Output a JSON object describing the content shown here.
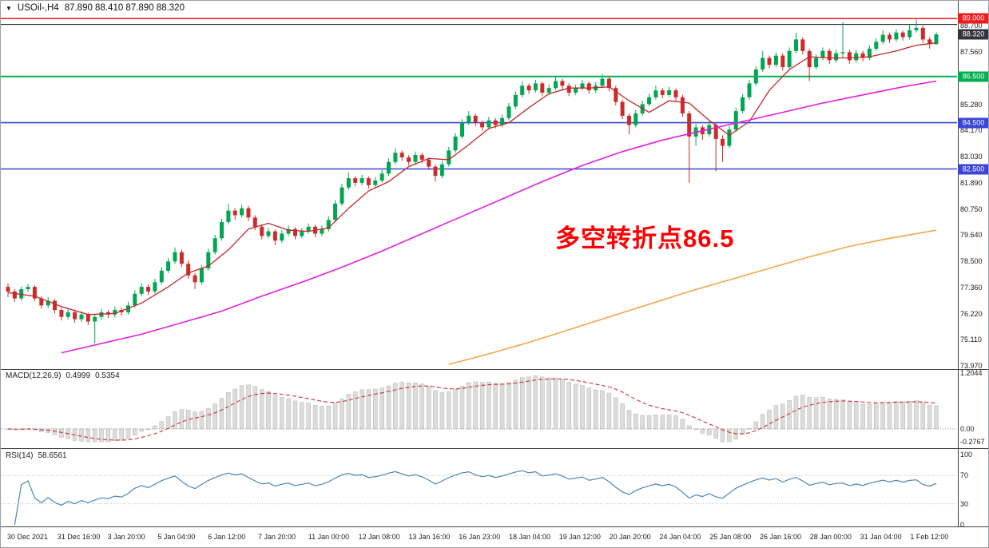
{
  "window": {
    "dropdown_icon": "▼",
    "symbol_period": "USOil-,H4",
    "ohlc": "87.890 88.410 87.890 88.320"
  },
  "annotation": {
    "text": "多空转折点86.5",
    "color": "#ff0000"
  },
  "current_price": {
    "value": 88.32,
    "label": "88.320",
    "label_bg": "#34343f"
  },
  "levels": [
    {
      "price": 89.0,
      "color": "#ee1c1c",
      "width": 1.5,
      "label": "89.000",
      "label_bg": "#ee1c1c"
    },
    {
      "price": 88.75,
      "color": "#141414",
      "width": 1
    },
    {
      "price": 86.5,
      "color": "#00b050",
      "width": 2,
      "label": "86.500",
      "label_bg": "#00b050"
    },
    {
      "price": 84.5,
      "color": "#3a45d6",
      "width": 1.6,
      "label": "84.500",
      "label_bg": "#3a45d6"
    },
    {
      "price": 82.5,
      "color": "#3a45d6",
      "width": 1.6,
      "label": "82.500",
      "label_bg": "#3a45d6"
    }
  ],
  "price_axis_labels": [
    {
      "text": "88.700",
      "price": 88.7
    },
    {
      "text": "87.560",
      "price": 87.56
    },
    {
      "text": "85.280",
      "price": 85.28
    },
    {
      "text": "84.170",
      "price": 84.17
    },
    {
      "text": "83.030",
      "price": 83.03
    },
    {
      "text": "81.890",
      "price": 81.89
    },
    {
      "text": "80.750",
      "price": 80.75
    },
    {
      "text": "79.640",
      "price": 79.64
    },
    {
      "text": "78.500",
      "price": 78.5
    },
    {
      "text": "77.360",
      "price": 77.36
    },
    {
      "text": "76.220",
      "price": 76.22
    },
    {
      "text": "75.110",
      "price": 75.11
    },
    {
      "text": "73.970",
      "price": 73.97
    }
  ],
  "date_axis": [
    "30 Dec 2021",
    "31 Dec 16:00",
    "3 Jan 20:00",
    "5 Jan 04:00",
    "6 Jan 12:00",
    "7 Jan 20:00",
    "11 Jan 00:00",
    "12 Jan 08:00",
    "13 Jan 16:00",
    "16 Jan 23:00",
    "18 Jan 04:00",
    "19 Jan 12:00",
    "20 Jan 20:00",
    "24 Jan 04:00",
    "25 Jan 08:00",
    "26 Jan 16:00",
    "28 Jan 00:00",
    "31 Jan 04:00",
    "1 Feb 12:00"
  ],
  "macd": {
    "name": "MACD(12,26,9)",
    "value_main": "0.4999",
    "value_signal": "0.5354",
    "params": {
      "fast": 12,
      "slow": 26,
      "signal": 9
    },
    "axis_labels": [
      {
        "text": "1.2044",
        "value": 1.2044
      },
      {
        "text": "0.00",
        "value": 0
      },
      {
        "text": "-0.2767",
        "value": -0.2767
      }
    ]
  },
  "rsi": {
    "name": "RSI(14)",
    "value": "58.6561",
    "period": 14,
    "level_lines": [
      70,
      30
    ],
    "axis_labels": [
      {
        "text": "100",
        "value": 100
      },
      {
        "text": "70",
        "value": 70
      },
      {
        "text": "30",
        "value": 30
      },
      {
        "text": "0",
        "value": 0
      }
    ]
  },
  "chart_data": {
    "type": "candlestick",
    "title": "USOil-,H4",
    "symbol": "USOil-",
    "timeframe": "H4",
    "ylim": [
      73.97,
      89.3
    ],
    "x_range": [
      "30 Dec 2021",
      "1 Feb 12:00"
    ],
    "indicators": [
      "MACD(12,26,9)",
      "RSI(14)"
    ],
    "colors": {
      "up": "#00a651",
      "down": "#cc2b2b"
    },
    "candles": [
      [
        77.4,
        77.55,
        76.95,
        77.2
      ],
      [
        77.2,
        77.3,
        76.75,
        76.9
      ],
      [
        76.9,
        77.42,
        76.8,
        77.3
      ],
      [
        77.3,
        77.52,
        77.18,
        77.4
      ],
      [
        77.4,
        77.48,
        76.78,
        76.9
      ],
      [
        76.9,
        77.0,
        76.45,
        76.6
      ],
      [
        76.6,
        76.95,
        76.48,
        76.8
      ],
      [
        76.8,
        76.88,
        76.25,
        76.4
      ],
      [
        76.4,
        76.5,
        75.95,
        76.1
      ],
      [
        76.1,
        76.45,
        75.98,
        76.3
      ],
      [
        76.3,
        76.38,
        75.85,
        76.0
      ],
      [
        76.0,
        76.35,
        75.88,
        76.2
      ],
      [
        76.2,
        76.28,
        75.75,
        75.9
      ],
      [
        75.9,
        76.22,
        74.95,
        76.1
      ],
      [
        76.1,
        76.45,
        75.98,
        76.3
      ],
      [
        76.3,
        76.4,
        76.05,
        76.2
      ],
      [
        76.2,
        76.55,
        76.08,
        76.4
      ],
      [
        76.4,
        76.5,
        76.15,
        76.3
      ],
      [
        76.3,
        76.75,
        76.2,
        76.6
      ],
      [
        76.6,
        77.25,
        76.5,
        77.1
      ],
      [
        77.1,
        77.55,
        77.0,
        77.4
      ],
      [
        77.4,
        77.5,
        77.05,
        77.2
      ],
      [
        77.2,
        77.75,
        77.1,
        77.6
      ],
      [
        77.6,
        78.25,
        77.5,
        78.1
      ],
      [
        78.1,
        78.65,
        78.0,
        78.5
      ],
      [
        78.5,
        79.1,
        78.4,
        78.9
      ],
      [
        78.9,
        79.0,
        78.25,
        78.4
      ],
      [
        78.4,
        78.55,
        77.75,
        77.9
      ],
      [
        77.9,
        78.0,
        77.3,
        77.6
      ],
      [
        77.6,
        78.35,
        77.5,
        78.2
      ],
      [
        78.2,
        79.05,
        78.1,
        78.9
      ],
      [
        78.9,
        79.65,
        78.8,
        79.5
      ],
      [
        79.5,
        80.35,
        79.4,
        80.2
      ],
      [
        80.2,
        81.0,
        80.1,
        80.7
      ],
      [
        80.7,
        80.8,
        80.3,
        80.5
      ],
      [
        80.5,
        80.95,
        80.4,
        80.8
      ],
      [
        80.8,
        80.9,
        80.25,
        80.4
      ],
      [
        80.4,
        80.5,
        79.85,
        80.0
      ],
      [
        80.0,
        80.1,
        79.45,
        79.6
      ],
      [
        79.6,
        79.95,
        79.5,
        79.8
      ],
      [
        79.8,
        79.88,
        79.2,
        79.4
      ],
      [
        79.4,
        79.85,
        79.3,
        79.7
      ],
      [
        79.7,
        80.05,
        79.6,
        79.9
      ],
      [
        79.9,
        79.98,
        79.45,
        79.6
      ],
      [
        79.6,
        79.95,
        79.5,
        79.8
      ],
      [
        79.8,
        80.15,
        79.7,
        80.0
      ],
      [
        80.0,
        80.08,
        79.55,
        79.7
      ],
      [
        79.7,
        80.05,
        79.6,
        79.9
      ],
      [
        79.9,
        80.45,
        79.8,
        80.3
      ],
      [
        80.3,
        81.15,
        80.2,
        81.0
      ],
      [
        81.0,
        81.85,
        80.9,
        81.7
      ],
      [
        81.7,
        82.35,
        81.6,
        82.1
      ],
      [
        82.1,
        82.2,
        81.75,
        81.9
      ],
      [
        81.9,
        82.25,
        81.8,
        82.1
      ],
      [
        82.1,
        82.18,
        81.65,
        81.8
      ],
      [
        81.8,
        82.15,
        81.7,
        82.0
      ],
      [
        82.0,
        82.45,
        81.9,
        82.3
      ],
      [
        82.3,
        82.95,
        82.2,
        82.8
      ],
      [
        82.8,
        83.4,
        82.7,
        83.2
      ],
      [
        83.2,
        83.3,
        82.85,
        83.0
      ],
      [
        83.0,
        83.1,
        82.65,
        82.8
      ],
      [
        82.8,
        83.25,
        82.7,
        83.1
      ],
      [
        83.1,
        83.2,
        82.75,
        82.9
      ],
      [
        82.9,
        83.0,
        82.45,
        82.6
      ],
      [
        82.6,
        82.7,
        81.95,
        82.2
      ],
      [
        82.2,
        82.85,
        82.1,
        82.7
      ],
      [
        82.7,
        83.45,
        82.6,
        83.3
      ],
      [
        83.3,
        84.05,
        83.2,
        83.9
      ],
      [
        83.9,
        84.65,
        83.8,
        84.5
      ],
      [
        84.5,
        85.0,
        84.4,
        84.8
      ],
      [
        84.8,
        84.9,
        84.35,
        84.5
      ],
      [
        84.5,
        84.6,
        84.15,
        84.3
      ],
      [
        84.3,
        84.75,
        84.2,
        84.6
      ],
      [
        84.6,
        84.7,
        84.25,
        84.4
      ],
      [
        84.4,
        84.85,
        84.3,
        84.7
      ],
      [
        84.7,
        85.35,
        84.6,
        85.2
      ],
      [
        85.2,
        85.85,
        85.1,
        85.7
      ],
      [
        85.7,
        86.3,
        85.6,
        86.1
      ],
      [
        86.1,
        86.2,
        85.75,
        85.9
      ],
      [
        85.9,
        86.35,
        85.8,
        86.2
      ],
      [
        86.2,
        86.28,
        85.65,
        85.8
      ],
      [
        85.8,
        86.15,
        85.7,
        86.0
      ],
      [
        86.0,
        86.5,
        85.9,
        86.3
      ],
      [
        86.3,
        86.4,
        85.95,
        86.1
      ],
      [
        86.1,
        86.2,
        85.65,
        85.8
      ],
      [
        85.8,
        86.15,
        85.7,
        86.0
      ],
      [
        86.0,
        86.35,
        85.9,
        86.2
      ],
      [
        86.2,
        86.28,
        85.75,
        85.9
      ],
      [
        85.9,
        86.25,
        85.8,
        86.1
      ],
      [
        86.1,
        86.6,
        86.0,
        86.4
      ],
      [
        86.4,
        86.48,
        85.85,
        86.0
      ],
      [
        86.0,
        86.1,
        85.25,
        85.4
      ],
      [
        85.4,
        85.5,
        84.65,
        84.8
      ],
      [
        84.8,
        84.9,
        84.0,
        84.4
      ],
      [
        84.4,
        85.05,
        84.3,
        84.9
      ],
      [
        84.9,
        85.45,
        84.8,
        85.3
      ],
      [
        85.3,
        85.75,
        85.2,
        85.6
      ],
      [
        85.6,
        86.1,
        85.5,
        85.9
      ],
      [
        85.9,
        86.0,
        85.55,
        85.7
      ],
      [
        85.7,
        86.05,
        85.6,
        85.9
      ],
      [
        85.9,
        85.98,
        85.4,
        85.6
      ],
      [
        85.6,
        85.7,
        84.75,
        84.9
      ],
      [
        84.9,
        85.0,
        81.9,
        83.9
      ],
      [
        83.9,
        84.45,
        83.5,
        84.3
      ],
      [
        84.3,
        84.4,
        83.75,
        84.0
      ],
      [
        84.0,
        84.55,
        83.9,
        84.4
      ],
      [
        84.4,
        84.5,
        82.4,
        83.8
      ],
      [
        83.8,
        83.95,
        82.8,
        83.5
      ],
      [
        83.5,
        84.35,
        83.4,
        84.2
      ],
      [
        84.2,
        85.15,
        84.1,
        85.0
      ],
      [
        85.0,
        85.75,
        84.9,
        85.6
      ],
      [
        85.6,
        86.35,
        85.5,
        86.2
      ],
      [
        86.2,
        86.95,
        86.1,
        86.8
      ],
      [
        86.8,
        87.6,
        86.7,
        87.3
      ],
      [
        87.3,
        87.4,
        86.85,
        87.0
      ],
      [
        87.0,
        87.55,
        86.9,
        87.4
      ],
      [
        87.4,
        87.5,
        86.75,
        86.9
      ],
      [
        86.9,
        87.75,
        86.8,
        87.6
      ],
      [
        87.6,
        88.4,
        87.5,
        88.1
      ],
      [
        88.1,
        88.2,
        87.45,
        87.6
      ],
      [
        87.6,
        87.7,
        86.3,
        86.9
      ],
      [
        86.9,
        87.45,
        86.8,
        87.3
      ],
      [
        87.3,
        87.75,
        87.2,
        87.6
      ],
      [
        87.6,
        87.7,
        87.05,
        87.2
      ],
      [
        87.2,
        87.65,
        87.1,
        87.5
      ],
      [
        87.5,
        88.85,
        87.3,
        87.55
      ],
      [
        87.55,
        87.65,
        87.05,
        87.2
      ],
      [
        87.2,
        87.65,
        87.1,
        87.5
      ],
      [
        87.5,
        87.6,
        87.15,
        87.3
      ],
      [
        87.3,
        87.85,
        87.2,
        87.7
      ],
      [
        87.7,
        88.15,
        87.6,
        88.0
      ],
      [
        88.0,
        88.5,
        87.9,
        88.3
      ],
      [
        88.3,
        88.4,
        87.95,
        88.1
      ],
      [
        88.1,
        88.55,
        88.0,
        88.4
      ],
      [
        88.4,
        88.48,
        88.05,
        88.2
      ],
      [
        88.2,
        88.75,
        88.1,
        88.5
      ],
      [
        88.5,
        88.97,
        88.4,
        88.6
      ],
      [
        88.6,
        88.7,
        87.95,
        88.1
      ],
      [
        88.1,
        88.2,
        87.7,
        87.9
      ],
      [
        87.89,
        88.41,
        87.89,
        88.32
      ]
    ],
    "moving_averages": [
      {
        "name": "fast-ma",
        "color": "#c22727",
        "width": 1.3,
        "points": [
          [
            0,
            77.15
          ],
          [
            4,
            77.0
          ],
          [
            8,
            76.55
          ],
          [
            12,
            76.2
          ],
          [
            16,
            76.25
          ],
          [
            20,
            76.7
          ],
          [
            24,
            77.4
          ],
          [
            27,
            78.0
          ],
          [
            30,
            78.3
          ],
          [
            33,
            79.0
          ],
          [
            36,
            79.9
          ],
          [
            39,
            80.15
          ],
          [
            42,
            79.85
          ],
          [
            45,
            79.8
          ],
          [
            48,
            79.95
          ],
          [
            51,
            80.8
          ],
          [
            54,
            81.55
          ],
          [
            57,
            81.95
          ],
          [
            60,
            82.6
          ],
          [
            63,
            82.95
          ],
          [
            66,
            82.9
          ],
          [
            69,
            83.55
          ],
          [
            72,
            84.25
          ],
          [
            75,
            84.5
          ],
          [
            78,
            85.15
          ],
          [
            81,
            85.75
          ],
          [
            84,
            86.0
          ],
          [
            87,
            86.0
          ],
          [
            90,
            86.05
          ],
          [
            93,
            85.45
          ],
          [
            96,
            84.95
          ],
          [
            99,
            85.45
          ],
          [
            102,
            85.35
          ],
          [
            105,
            84.6
          ],
          [
            108,
            83.95
          ],
          [
            111,
            84.55
          ],
          [
            114,
            85.9
          ],
          [
            117,
            86.8
          ],
          [
            120,
            87.35
          ],
          [
            123,
            87.3
          ],
          [
            126,
            87.3
          ],
          [
            129,
            87.35
          ],
          [
            133,
            87.6
          ],
          [
            136,
            87.85
          ],
          [
            139,
            87.95
          ]
        ]
      },
      {
        "name": "mid-ma",
        "color": "#e020e0",
        "width": 1.6,
        "points": [
          [
            8,
            74.55
          ],
          [
            14,
            74.95
          ],
          [
            20,
            75.35
          ],
          [
            26,
            75.85
          ],
          [
            32,
            76.35
          ],
          [
            38,
            77.0
          ],
          [
            44,
            77.6
          ],
          [
            50,
            78.25
          ],
          [
            56,
            78.95
          ],
          [
            62,
            79.7
          ],
          [
            68,
            80.45
          ],
          [
            74,
            81.2
          ],
          [
            80,
            81.95
          ],
          [
            86,
            82.65
          ],
          [
            92,
            83.25
          ],
          [
            98,
            83.75
          ],
          [
            104,
            84.15
          ],
          [
            110,
            84.55
          ],
          [
            116,
            84.95
          ],
          [
            122,
            85.35
          ],
          [
            128,
            85.7
          ],
          [
            134,
            86.05
          ],
          [
            139,
            86.3
          ]
        ]
      },
      {
        "name": "slow-ma",
        "color": "#f5a54a",
        "width": 1.6,
        "points": [
          [
            66,
            74.05
          ],
          [
            72,
            74.5
          ],
          [
            78,
            75.0
          ],
          [
            84,
            75.55
          ],
          [
            90,
            76.1
          ],
          [
            96,
            76.65
          ],
          [
            102,
            77.2
          ],
          [
            108,
            77.7
          ],
          [
            114,
            78.2
          ],
          [
            120,
            78.7
          ],
          [
            126,
            79.15
          ],
          [
            132,
            79.5
          ],
          [
            139,
            79.85
          ]
        ]
      }
    ]
  }
}
